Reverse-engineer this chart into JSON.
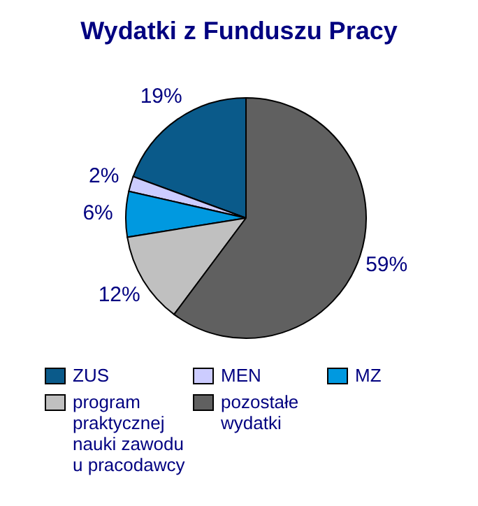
{
  "chart_data": {
    "type": "pie",
    "title": "Wydatki z Funduszu Pracy",
    "categories": [
      "ZUS",
      "MEN",
      "MZ",
      "program praktycznej nauki zawodu u pracodawcy",
      "pozostałe wydatki"
    ],
    "values": [
      19,
      2,
      6,
      12,
      59
    ],
    "value_labels": [
      "19%",
      "2%",
      "6%",
      "12%",
      "59%"
    ],
    "colors": [
      "#0a5a8a",
      "#ccccff",
      "#0099e0",
      "#c0c0c0",
      "#606060"
    ],
    "legend": "bottom"
  }
}
